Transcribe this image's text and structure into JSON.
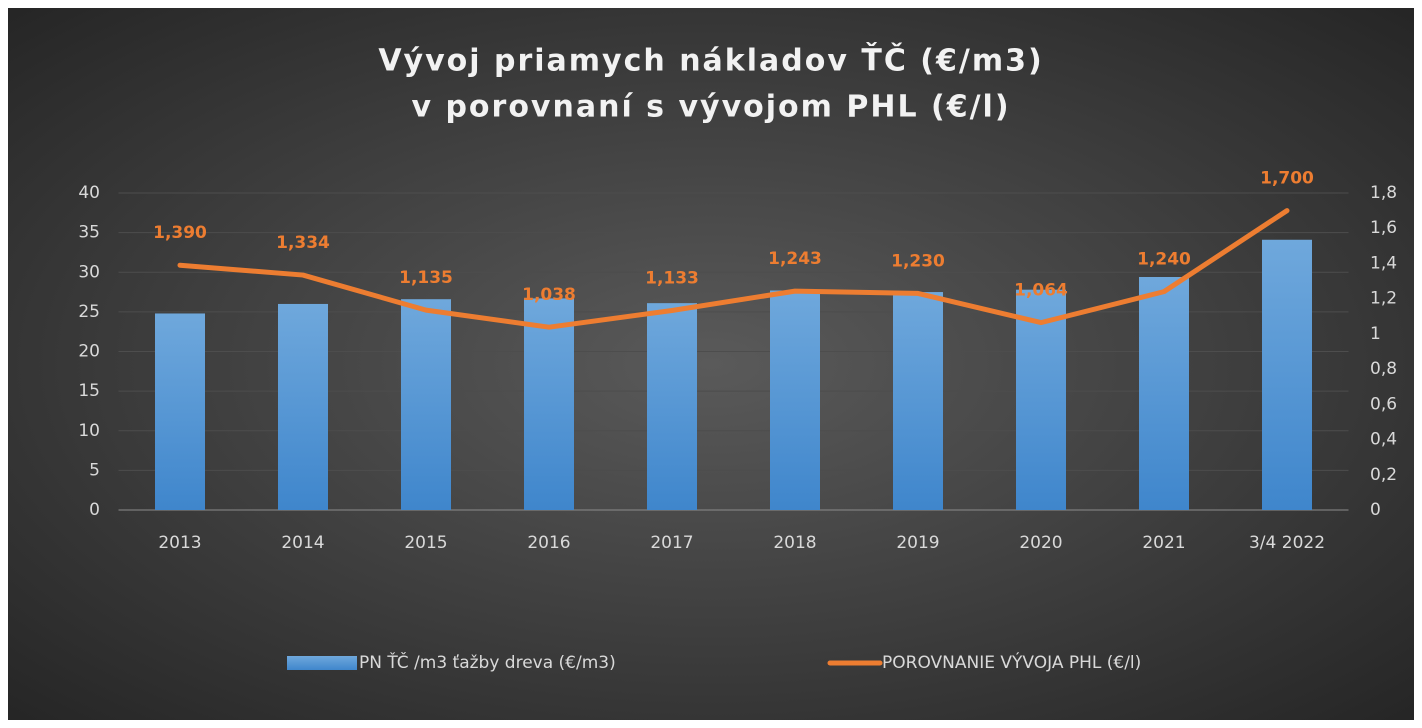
{
  "chart_data": {
    "type": "bar-line",
    "title": [
      "Vývoj priamych nákladov ŤČ (€/m3)",
      "v porovnaní s vývojom PHL (€/l)"
    ],
    "categories": [
      "2013",
      "2014",
      "2015",
      "2016",
      "2017",
      "2018",
      "2019",
      "2020",
      "2021",
      "3/4 2022"
    ],
    "series": [
      {
        "name": "PN ŤČ /m3 ťažby dreva (€/m3)",
        "type": "bar",
        "color": "#5b9bd5",
        "values": [
          24.8,
          26.0,
          26.6,
          26.7,
          26.1,
          27.7,
          27.5,
          27.8,
          29.4,
          34.1
        ]
      },
      {
        "name": "POROVNANIE VÝVOJA PHL (€/l)",
        "type": "line",
        "axis": "y2",
        "color": "#ed7d31",
        "values": [
          1.39,
          1.334,
          1.135,
          1.038,
          1.133,
          1.243,
          1.23,
          1.064,
          1.24,
          1.7
        ],
        "value_labels": [
          "1,390",
          "1,334",
          "1,135",
          "1,038",
          "1,133",
          "1,243",
          "1,230",
          "1,064",
          "1,240",
          "1,700"
        ]
      }
    ],
    "ylim": [
      0,
      40
    ],
    "yticks": [
      0,
      5,
      10,
      15,
      20,
      25,
      30,
      35,
      40
    ],
    "y2lim": [
      0,
      1.8
    ],
    "y2ticks": [
      0,
      {
        "value": 0.2,
        "label": "0,2"
      },
      {
        "value": 0.4,
        "label": "0,4"
      },
      {
        "value": 0.6,
        "label": "0,6"
      },
      {
        "value": 0.8,
        "label": "0,8"
      },
      1,
      {
        "value": 1.2,
        "label": "1,2"
      },
      {
        "value": 1.4,
        "label": "1,4"
      },
      {
        "value": 1.6,
        "label": "1,6"
      },
      {
        "value": 1.8,
        "label": "1,8"
      }
    ],
    "grid": true,
    "legend": "bottom"
  }
}
